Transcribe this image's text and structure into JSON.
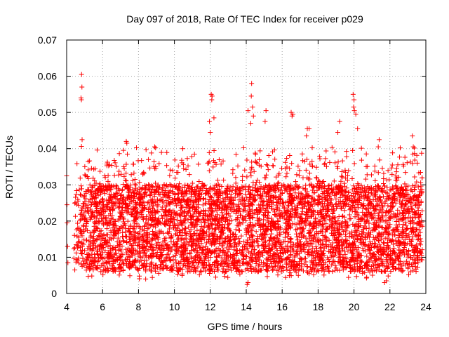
{
  "chart_data": {
    "type": "scatter",
    "title": "Day 097 of 2018, Rate Of TEC Index for receiver p029",
    "xlabel": "GPS time / hours",
    "ylabel": "ROTI / TECUs",
    "xlim": [
      4,
      24
    ],
    "ylim": [
      0,
      0.07
    ],
    "x_ticks": [
      4,
      6,
      8,
      10,
      12,
      14,
      16,
      18,
      20,
      22,
      24
    ],
    "x_tick_labels": [
      "4",
      "6",
      "8",
      "10",
      "12",
      "14",
      "16",
      "18",
      "20",
      "22",
      "24"
    ],
    "y_ticks": [
      0,
      0.01,
      0.02,
      0.03,
      0.04,
      0.05,
      0.06,
      0.07
    ],
    "y_tick_labels": [
      "0",
      "0.01",
      "0.02",
      "0.03",
      "0.04",
      "0.05",
      "0.06",
      "0.07"
    ],
    "grid": true,
    "marker": "+",
    "marker_color": "#ff0000",
    "series": [
      {
        "name": "ROTI",
        "points": [
          [
            4.0,
            0.0325
          ],
          [
            4.02,
            0.0245
          ],
          [
            4.03,
            0.0195
          ],
          [
            4.05,
            0.013
          ],
          [
            4.07,
            0.0085
          ],
          [
            4.83,
            0.0605
          ],
          [
            4.85,
            0.057
          ],
          [
            4.8,
            0.054
          ],
          [
            4.82,
            0.0535
          ],
          [
            4.86,
            0.0425
          ],
          [
            7.32,
            0.042
          ],
          [
            7.35,
            0.0415
          ],
          [
            7.38,
            0.0385
          ],
          [
            8.9,
            0.0405
          ],
          [
            8.95,
            0.0402
          ],
          [
            12.05,
            0.055
          ],
          [
            12.1,
            0.0545
          ],
          [
            12.08,
            0.0535
          ],
          [
            11.95,
            0.0475
          ],
          [
            12.0,
            0.0445
          ],
          [
            12.2,
            0.0485
          ],
          [
            14.3,
            0.058
          ],
          [
            14.28,
            0.0545
          ],
          [
            14.35,
            0.0515
          ],
          [
            14.1,
            0.0505
          ],
          [
            14.4,
            0.049
          ],
          [
            14.25,
            0.047
          ],
          [
            15.1,
            0.0505
          ],
          [
            15.05,
            0.0475
          ],
          [
            16.5,
            0.05
          ],
          [
            16.55,
            0.049
          ],
          [
            16.6,
            0.0495
          ],
          [
            17.4,
            0.0455
          ],
          [
            17.5,
            0.0455
          ],
          [
            17.35,
            0.0435
          ],
          [
            19.2,
            0.0475
          ],
          [
            19.1,
            0.0445
          ],
          [
            19.95,
            0.055
          ],
          [
            20.0,
            0.0535
          ],
          [
            19.98,
            0.0515
          ],
          [
            20.02,
            0.0505
          ],
          [
            20.1,
            0.0495
          ],
          [
            20.2,
            0.0455
          ],
          [
            21.4,
            0.0425
          ],
          [
            21.35,
            0.0405
          ],
          [
            23.25,
            0.0435
          ],
          [
            23.3,
            0.0405
          ],
          [
            23.28,
            0.0385
          ],
          [
            14.05,
            0.0025
          ],
          [
            14.1,
            0.003
          ],
          [
            21.7,
            0.003
          ],
          [
            21.8,
            0.0035
          ],
          [
            12.3,
            0.0045
          ],
          [
            16.9,
            0.005
          ],
          [
            8.4,
            0.004
          ]
        ]
      }
    ],
    "density_profile": {
      "description": "Dense band of ROTI values between roughly 0.005 and 0.035 TECU from 4.4 to 23.8 hours (data units)",
      "x_range": [
        4.4,
        23.8
      ],
      "y_lower": 0.005,
      "y_upper": 0.035
    }
  }
}
